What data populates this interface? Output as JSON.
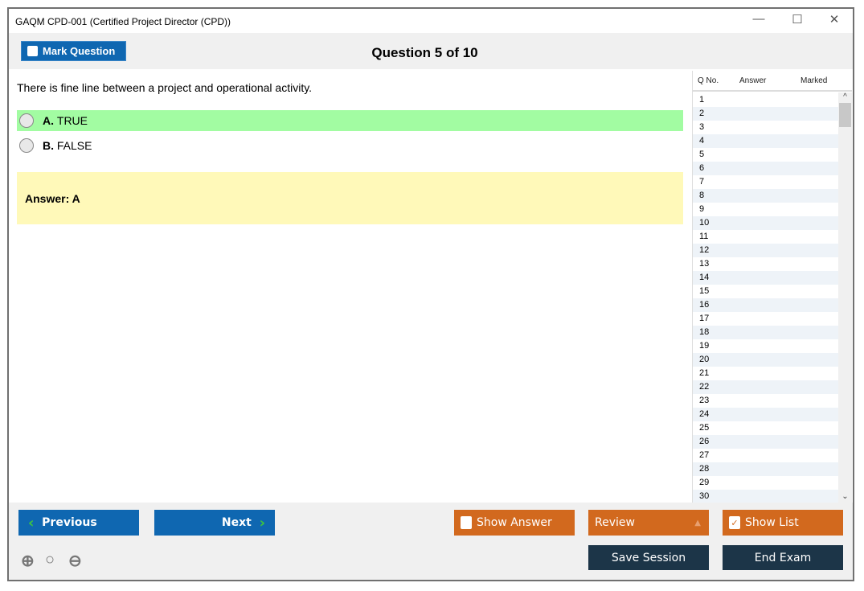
{
  "window": {
    "title": "GAQM CPD-001 (Certified Project Director (CPD))",
    "minimize": "—",
    "maximize": "☐",
    "close": "✕"
  },
  "toolbar": {
    "mark_label": "Mark Question",
    "question_title": "Question 5 of 10"
  },
  "question": {
    "text": "There is fine line between a project and operational activity.",
    "options": [
      {
        "letter": "A.",
        "text": "TRUE",
        "highlighted": true
      },
      {
        "letter": "B.",
        "text": "FALSE",
        "highlighted": false
      }
    ],
    "answer": "Answer: A"
  },
  "list": {
    "headers": [
      "Q No.",
      "Answer",
      "Marked"
    ],
    "rows": [
      "1",
      "2",
      "3",
      "4",
      "5",
      "6",
      "7",
      "8",
      "9",
      "10",
      "11",
      "12",
      "13",
      "14",
      "15",
      "16",
      "17",
      "18",
      "19",
      "20",
      "21",
      "22",
      "23",
      "24",
      "25",
      "26",
      "27",
      "28",
      "29",
      "30"
    ]
  },
  "bottom": {
    "previous": "Previous",
    "next": "Next",
    "show_answer": "Show Answer",
    "show_answer_checked": false,
    "review": "Review",
    "show_list": "Show List",
    "show_list_checked": true,
    "save_session": "Save Session",
    "end_exam": "End Exam"
  },
  "colors": {
    "primary": "#0f67b1",
    "orange": "#d2691e",
    "navy": "#1c3548",
    "correct": "#a2fca2",
    "answer_bg": "#fff9b9"
  }
}
